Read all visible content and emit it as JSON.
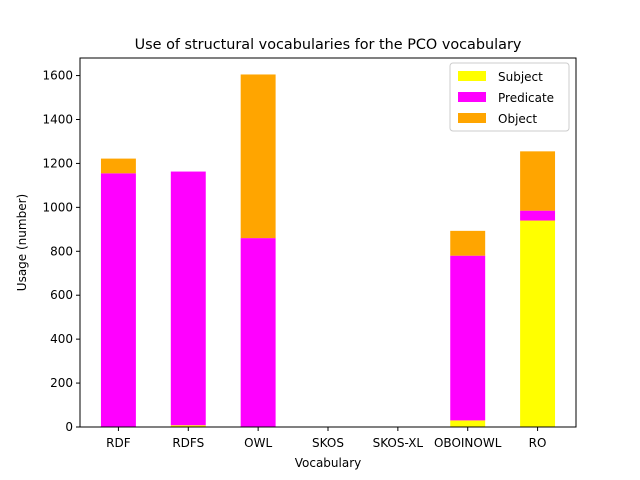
{
  "chart_data": {
    "type": "bar",
    "stacked": true,
    "title": "Use of structural vocabularies for the PCO vocabulary",
    "xlabel": "Vocabulary",
    "ylabel": "Usage (number)",
    "categories": [
      "RDF",
      "RDFS",
      "OWL",
      "SKOS",
      "SKOS-XL",
      "OBOINOWL",
      "RO"
    ],
    "series": [
      {
        "name": "Subject",
        "color": "#ffff00",
        "values": [
          0,
          8,
          0,
          0,
          0,
          30,
          940
        ]
      },
      {
        "name": "Predicate",
        "color": "#ff00ff",
        "values": [
          1155,
          1155,
          860,
          0,
          0,
          750,
          45
        ]
      },
      {
        "name": "Object",
        "color": "#ffa500",
        "values": [
          67,
          0,
          745,
          0,
          0,
          113,
          270
        ]
      }
    ],
    "ylim": [
      0,
      1680
    ],
    "yticks": [
      0,
      200,
      400,
      600,
      800,
      1000,
      1200,
      1400,
      1600
    ],
    "grid": false,
    "legend": "top-right"
  }
}
